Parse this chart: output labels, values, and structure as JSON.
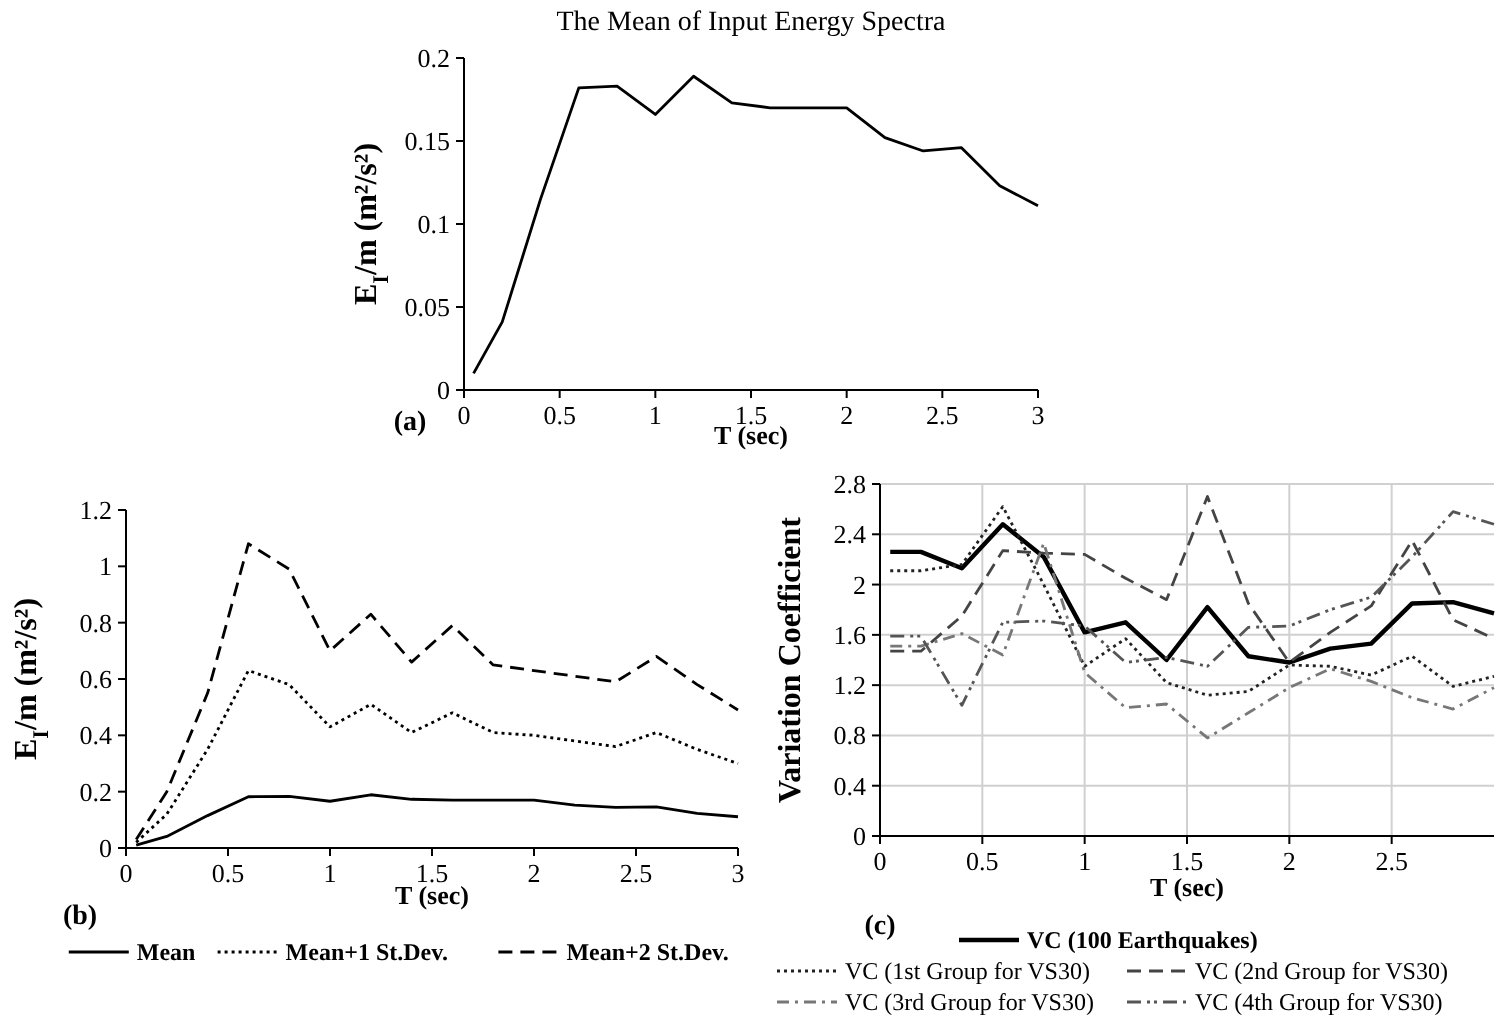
{
  "chart_data": [
    {
      "type": "line",
      "title": "The Mean of Input Energy Spectra",
      "xlabel": "T (sec)",
      "ylabel": "E$_{I}$/m (m²/s²)",
      "annotations": [
        "(a)"
      ],
      "x": [
        0.05,
        0.2,
        0.4,
        0.6,
        0.8,
        1.0,
        1.2,
        1.4,
        1.6,
        1.8,
        2.0,
        2.2,
        2.4,
        2.6,
        2.8,
        3.0
      ],
      "series": [
        {
          "color": "#000000",
          "line_style": "solid",
          "values": [
            0.01,
            0.041,
            0.115,
            0.182,
            0.183,
            0.166,
            0.189,
            0.173,
            0.17,
            0.17,
            0.17,
            0.152,
            0.144,
            0.146,
            0.123,
            0.111
          ]
        }
      ],
      "xlim": [
        0,
        3
      ],
      "xticks": [
        0,
        0.5,
        1,
        1.5,
        2,
        2.5,
        3
      ],
      "ylim": [
        0,
        0.2
      ],
      "yticks": [
        0,
        0.05,
        0.1,
        0.15,
        0.2
      ],
      "grid": false,
      "legend": false,
      "marker": "none"
    },
    {
      "type": "line",
      "xlabel": "T (sec)",
      "ylabel": "E$_{I}$/m (m²/s²)",
      "annotations": [
        "(b)"
      ],
      "x": [
        0.05,
        0.2,
        0.4,
        0.6,
        0.8,
        1.0,
        1.2,
        1.4,
        1.6,
        1.8,
        2.0,
        2.2,
        2.4,
        2.6,
        2.8,
        3.0
      ],
      "series": [
        {
          "name": "Mean",
          "color": "#000000",
          "line_style": "solid",
          "values": [
            0.01,
            0.041,
            0.115,
            0.182,
            0.183,
            0.166,
            0.189,
            0.173,
            0.17,
            0.17,
            0.17,
            0.152,
            0.144,
            0.146,
            0.123,
            0.111
          ]
        },
        {
          "name": "Mean+1 St.Dev.",
          "color": "#000000",
          "line_style": "dotted",
          "values": [
            0.02,
            0.12,
            0.35,
            0.63,
            0.58,
            0.43,
            0.51,
            0.41,
            0.48,
            0.41,
            0.4,
            0.38,
            0.36,
            0.41,
            0.35,
            0.3
          ]
        },
        {
          "name": "Mean+2 St.Dev.",
          "color": "#000000",
          "line_style": "dashed",
          "values": [
            0.03,
            0.2,
            0.55,
            1.08,
            0.99,
            0.7,
            0.83,
            0.66,
            0.79,
            0.65,
            0.63,
            0.61,
            0.59,
            0.68,
            0.58,
            0.49
          ]
        }
      ],
      "xlim": [
        0,
        3
      ],
      "xticks": [
        0,
        0.5,
        1,
        1.5,
        2,
        2.5,
        3
      ],
      "ylim": [
        0,
        1.2
      ],
      "yticks": [
        0,
        0.2,
        0.4,
        0.6,
        0.8,
        1,
        1.2
      ],
      "grid": false,
      "legend": "bottom",
      "marker": "none"
    },
    {
      "type": "line",
      "xlabel": "T (sec)",
      "ylabel": "Variation Coefficient",
      "annotations": [
        "(c)"
      ],
      "x": [
        0.05,
        0.2,
        0.4,
        0.6,
        0.8,
        1.0,
        1.2,
        1.4,
        1.6,
        1.8,
        2.0,
        2.2,
        2.4,
        2.6,
        2.8,
        3.0
      ],
      "series": [
        {
          "name": "VC (100 Earthquakes)",
          "color": "#000000",
          "line_style": "solid",
          "values": [
            2.26,
            2.26,
            2.13,
            2.48,
            2.22,
            1.62,
            1.7,
            1.4,
            1.82,
            1.43,
            1.38,
            1.49,
            1.53,
            1.85,
            1.86,
            1.77
          ]
        },
        {
          "name": "VC (1st Group for VS30)",
          "color": "#222222",
          "line_style": "dotted",
          "values": [
            2.11,
            2.11,
            2.16,
            2.62,
            2.0,
            1.35,
            1.57,
            1.22,
            1.12,
            1.15,
            1.36,
            1.35,
            1.28,
            1.43,
            1.19,
            1.27
          ]
        },
        {
          "name": "VC (2nd Group for VS30)",
          "color": "#444444",
          "line_style": "dashed",
          "values": [
            1.47,
            1.47,
            1.75,
            2.27,
            2.25,
            2.24,
            2.05,
            1.88,
            2.7,
            1.85,
            1.38,
            1.62,
            1.83,
            2.35,
            1.72,
            1.57
          ]
        },
        {
          "name": "VC (3rd Group for VS30)",
          "color": "#777777",
          "line_style": "dashdot",
          "values": [
            1.51,
            1.51,
            1.61,
            1.44,
            2.33,
            1.3,
            1.02,
            1.05,
            0.78,
            0.98,
            1.18,
            1.33,
            1.23,
            1.1,
            1.01,
            1.18
          ]
        },
        {
          "name": "VC (4th Group for VS30)",
          "color": "#555555",
          "line_style": "dashdotdot",
          "values": [
            1.59,
            1.59,
            1.04,
            1.7,
            1.71,
            1.67,
            1.38,
            1.42,
            1.35,
            1.66,
            1.67,
            1.8,
            1.9,
            2.22,
            2.58,
            2.48
          ]
        }
      ],
      "xlim": [
        0,
        3
      ],
      "xticks": [
        0,
        0.5,
        1,
        1.5,
        2,
        2.5
      ],
      "ylim": [
        0,
        2.8
      ],
      "yticks": [
        0,
        0.4,
        0.8,
        1.2,
        1.6,
        2,
        2.4,
        2.8
      ],
      "grid": true,
      "legend": "bottom",
      "marker": "none"
    }
  ]
}
